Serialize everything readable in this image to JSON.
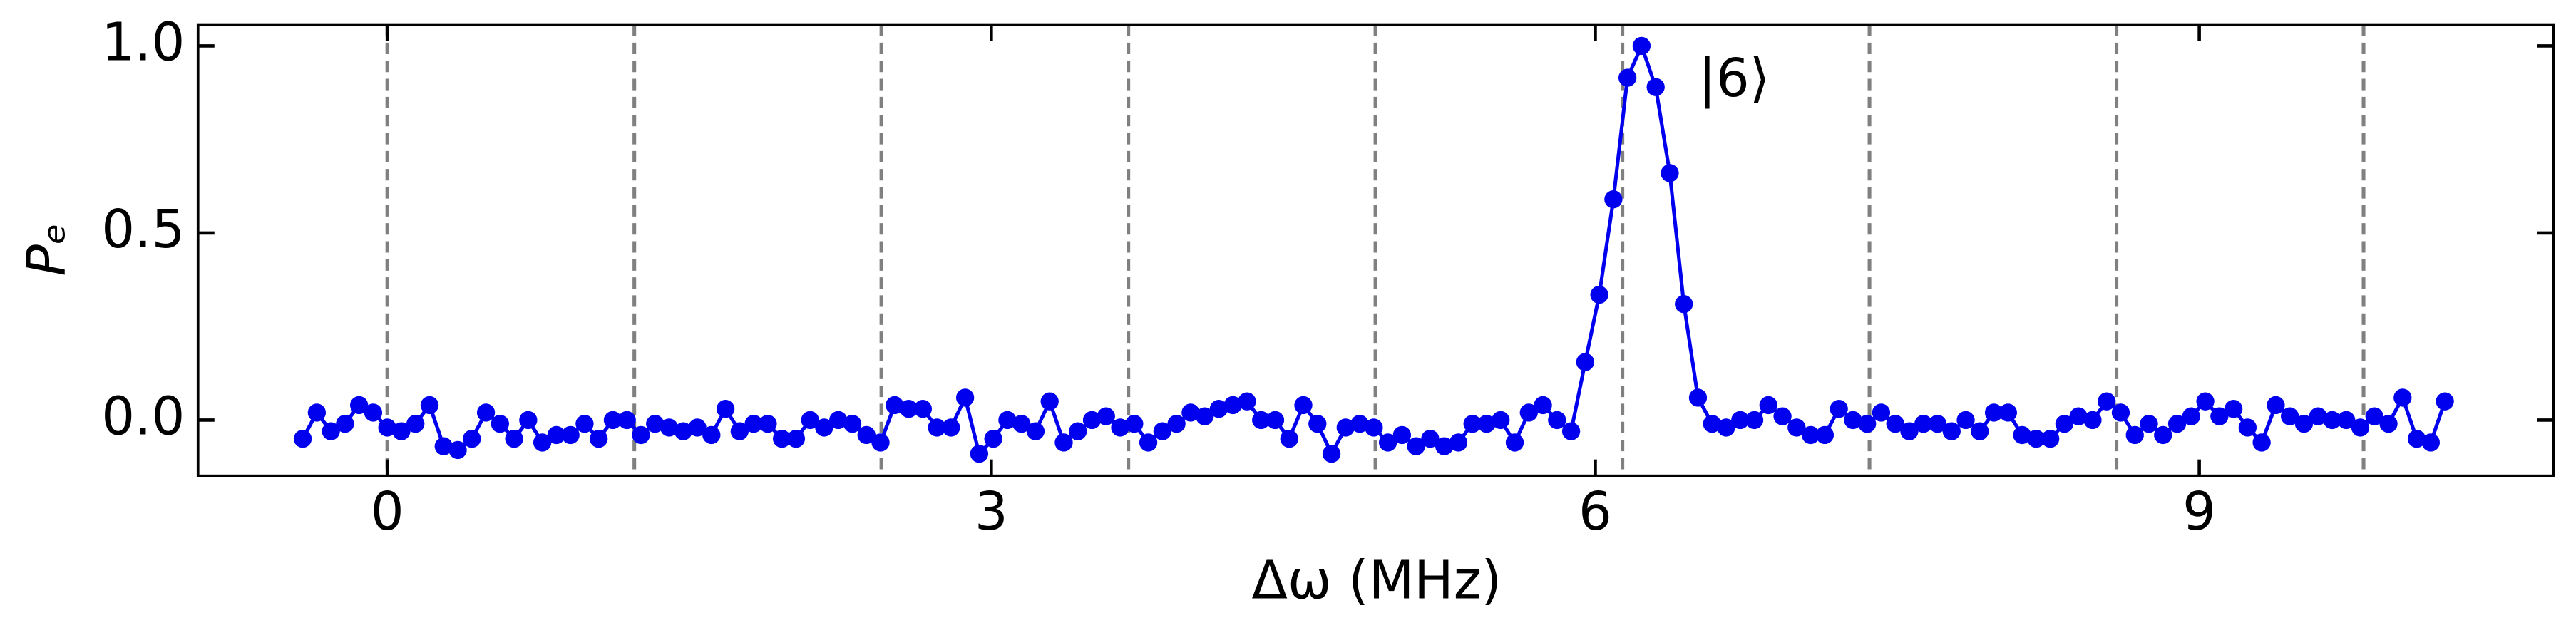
{
  "chart_data": {
    "type": "line",
    "xlabel": "Δω (MHz)",
    "ylabel": "Pₑ",
    "annotation": "|6⟩",
    "xlim": [
      -0.94,
      10.76
    ],
    "ylim": [
      -0.149,
      1.057
    ],
    "xticks": [
      0,
      3,
      6,
      9
    ],
    "yticks": [
      {
        "value": 0,
        "label": "0.0"
      },
      0.5,
      {
        "value": 1,
        "label": "1.0"
      }
    ],
    "vlines": [
      0,
      1.227,
      2.454,
      3.681,
      4.908,
      6.135,
      7.362,
      8.589,
      9.816
    ],
    "vline_color": "#808080",
    "x": [
      -0.42,
      -0.35,
      -0.28,
      -0.21,
      -0.14,
      -0.07,
      0,
      0.07,
      0.14,
      0.21,
      0.28,
      0.35,
      0.42,
      0.49,
      0.56,
      0.63,
      0.7,
      0.77,
      0.84,
      0.91,
      0.98,
      1.05,
      1.12,
      1.19,
      1.26,
      1.33,
      1.4,
      1.47,
      1.54,
      1.61,
      1.68,
      1.75,
      1.82,
      1.89,
      1.96,
      2.03,
      2.1,
      2.17,
      2.24,
      2.31,
      2.38,
      2.45,
      2.52,
      2.59,
      2.66,
      2.73,
      2.8,
      2.87,
      2.94,
      3.01,
      3.08,
      3.15,
      3.22,
      3.29,
      3.36,
      3.43,
      3.5,
      3.57,
      3.64,
      3.71,
      3.78,
      3.85,
      3.92,
      3.99,
      4.06,
      4.13,
      4.2,
      4.27,
      4.34,
      4.41,
      4.48,
      4.55,
      4.62,
      4.69,
      4.76,
      4.83,
      4.9,
      4.97,
      5.04,
      5.11,
      5.18,
      5.25,
      5.32,
      5.39,
      5.46,
      5.53,
      5.6,
      5.67,
      5.74,
      5.81,
      5.88,
      5.95,
      6.02,
      6.09,
      6.16,
      6.23,
      6.3,
      6.37,
      6.44,
      6.51,
      6.58,
      6.65,
      6.72,
      6.79,
      6.86,
      6.93,
      7.0,
      7.07,
      7.14,
      7.21,
      7.28,
      7.35,
      7.42,
      7.49,
      7.56,
      7.63,
      7.7,
      7.77,
      7.84,
      7.91,
      7.98,
      8.05,
      8.12,
      8.19,
      8.26,
      8.33,
      8.4,
      8.47,
      8.54,
      8.61,
      8.68,
      8.75,
      8.82,
      8.89,
      8.96,
      9.03,
      9.1,
      9.17,
      9.24,
      9.31,
      9.38,
      9.45,
      9.52,
      9.59,
      9.66,
      9.73,
      9.8,
      9.87,
      9.94,
      10.01,
      10.08,
      10.15,
      10.22
    ],
    "series": [
      {
        "color": "#0000ee",
        "values": [
          -0.05,
          0.02,
          -0.03,
          -0.01,
          0.04,
          0.02,
          -0.02,
          -0.03,
          -0.01,
          0.04,
          -0.07,
          -0.08,
          -0.05,
          0.02,
          -0.01,
          -0.05,
          0.0,
          -0.06,
          -0.04,
          -0.04,
          -0.01,
          -0.05,
          0.0,
          0.0,
          -0.04,
          -0.01,
          -0.02,
          -0.03,
          -0.02,
          -0.04,
          0.03,
          -0.03,
          -0.01,
          -0.01,
          -0.05,
          -0.05,
          0.0,
          -0.02,
          0.0,
          -0.01,
          -0.04,
          -0.06,
          0.04,
          0.03,
          0.03,
          -0.02,
          -0.02,
          0.06,
          -0.09,
          -0.05,
          0.0,
          -0.01,
          -0.03,
          0.05,
          -0.06,
          -0.03,
          0.0,
          0.01,
          -0.02,
          -0.01,
          -0.06,
          -0.03,
          -0.01,
          0.02,
          0.01,
          0.03,
          0.04,
          0.05,
          0.0,
          0.0,
          -0.05,
          0.04,
          -0.01,
          -0.09,
          -0.02,
          -0.01,
          -0.02,
          -0.06,
          -0.04,
          -0.07,
          -0.05,
          -0.07,
          -0.06,
          -0.01,
          -0.01,
          0.0,
          -0.06,
          0.02,
          0.04,
          0.0,
          -0.03,
          0.155,
          0.335,
          0.59,
          0.915,
          1.0,
          0.89,
          0.66,
          0.31,
          0.06,
          -0.01,
          -0.02,
          0.0,
          0.0,
          0.04,
          0.01,
          -0.02,
          -0.04,
          -0.04,
          0.03,
          0.0,
          -0.01,
          0.02,
          -0.01,
          -0.03,
          -0.01,
          -0.01,
          -0.03,
          0.0,
          -0.03,
          0.02,
          0.02,
          -0.04,
          -0.05,
          -0.05,
          -0.01,
          0.01,
          0.0,
          0.05,
          0.02,
          -0.04,
          -0.01,
          -0.04,
          -0.01,
          0.01,
          0.05,
          0.01,
          0.03,
          -0.02,
          -0.06,
          0.04,
          0.01,
          -0.01,
          0.01,
          0.0,
          0.0,
          -0.02,
          0.01,
          -0.01,
          0.06,
          -0.05,
          -0.06,
          0.05
        ]
      }
    ]
  }
}
